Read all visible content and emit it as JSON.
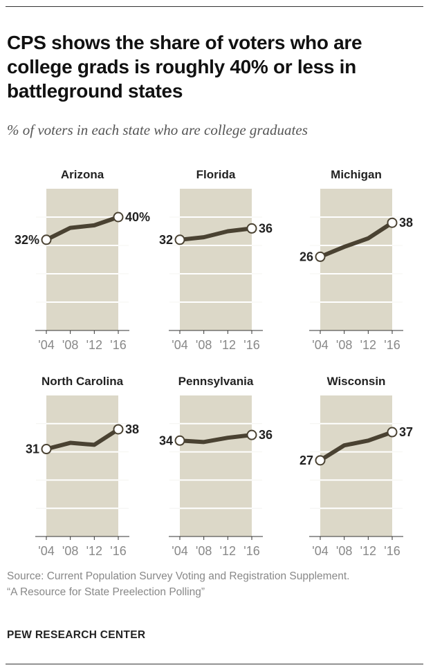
{
  "title": "CPS shows the share of voters who are college grads is roughly 40% or less in battleground states",
  "subtitle": "% of voters in each state who are college graduates",
  "source_line1": "Source: Current Population Survey Voting and Registration Supplement.",
  "source_line2": "“A Resource for State Preelection Polling”",
  "brand": "PEW RESEARCH CENTER",
  "colors": {
    "panel_bg": "#dcd8c8",
    "line": "#4a4232",
    "axis_text": "#888888",
    "label_text": "#222222"
  },
  "chart_data": [
    {
      "type": "line",
      "title": "Arizona",
      "categories": [
        "'04",
        "'08",
        "'12",
        "'16"
      ],
      "values": [
        32,
        36.2,
        37.1,
        40
      ],
      "labels": [
        "32%",
        "",
        "",
        "40%"
      ],
      "ylim": [
        0,
        50
      ],
      "grid": true
    },
    {
      "type": "line",
      "title": "Florida",
      "categories": [
        "'04",
        "'08",
        "'12",
        "'16"
      ],
      "values": [
        32,
        32.9,
        35,
        36
      ],
      "labels": [
        "32",
        "",
        "",
        "36"
      ],
      "ylim": [
        0,
        50
      ],
      "grid": true
    },
    {
      "type": "line",
      "title": "Michigan",
      "categories": [
        "'04",
        "'08",
        "'12",
        "'16"
      ],
      "values": [
        26,
        29.5,
        32.5,
        38
      ],
      "labels": [
        "26",
        "",
        "",
        "38"
      ],
      "ylim": [
        0,
        50
      ],
      "grid": true
    },
    {
      "type": "line",
      "title": "North Carolina",
      "categories": [
        "'04",
        "'08",
        "'12",
        "'16"
      ],
      "values": [
        31,
        33.2,
        32.5,
        38
      ],
      "labels": [
        "31",
        "",
        "",
        "38"
      ],
      "ylim": [
        0,
        50
      ],
      "grid": true
    },
    {
      "type": "line",
      "title": "Pennsylvania",
      "categories": [
        "'04",
        "'08",
        "'12",
        "'16"
      ],
      "values": [
        34,
        33.5,
        35,
        36
      ],
      "labels": [
        "34",
        "",
        "",
        "36"
      ],
      "ylim": [
        0,
        50
      ],
      "grid": true
    },
    {
      "type": "line",
      "title": "Wisconsin",
      "categories": [
        "'04",
        "'08",
        "'12",
        "'16"
      ],
      "values": [
        27,
        32.3,
        34,
        37
      ],
      "labels": [
        "27",
        "",
        "",
        "37"
      ],
      "ylim": [
        0,
        50
      ],
      "grid": true
    }
  ]
}
